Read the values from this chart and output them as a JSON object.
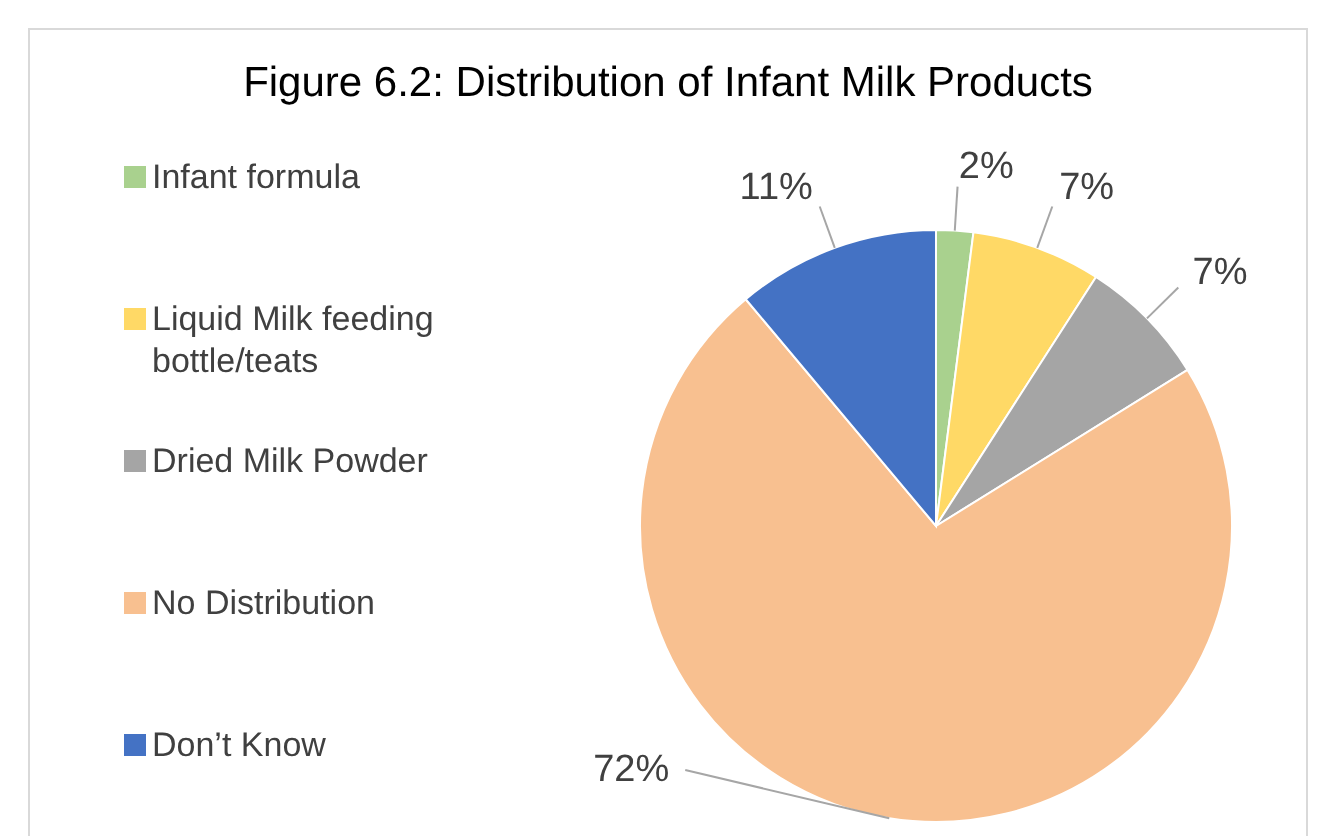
{
  "chart_data": {
    "type": "pie",
    "title": "Figure 6.2: Distribution of Infant Milk Products",
    "categories": [
      "Infant formula",
      "Liquid Milk feeding bottle/teats",
      "Dried Milk Powder",
      "No Distribution",
      "Don’t Know"
    ],
    "values": [
      2,
      7,
      7,
      72,
      11
    ],
    "value_labels": [
      "2%",
      "7%",
      "7%",
      "72%",
      "11%"
    ],
    "colors": [
      "#a9d18e",
      "#ffd966",
      "#a5a5a5",
      "#f8c090",
      "#4472c4"
    ],
    "legend": "left"
  }
}
